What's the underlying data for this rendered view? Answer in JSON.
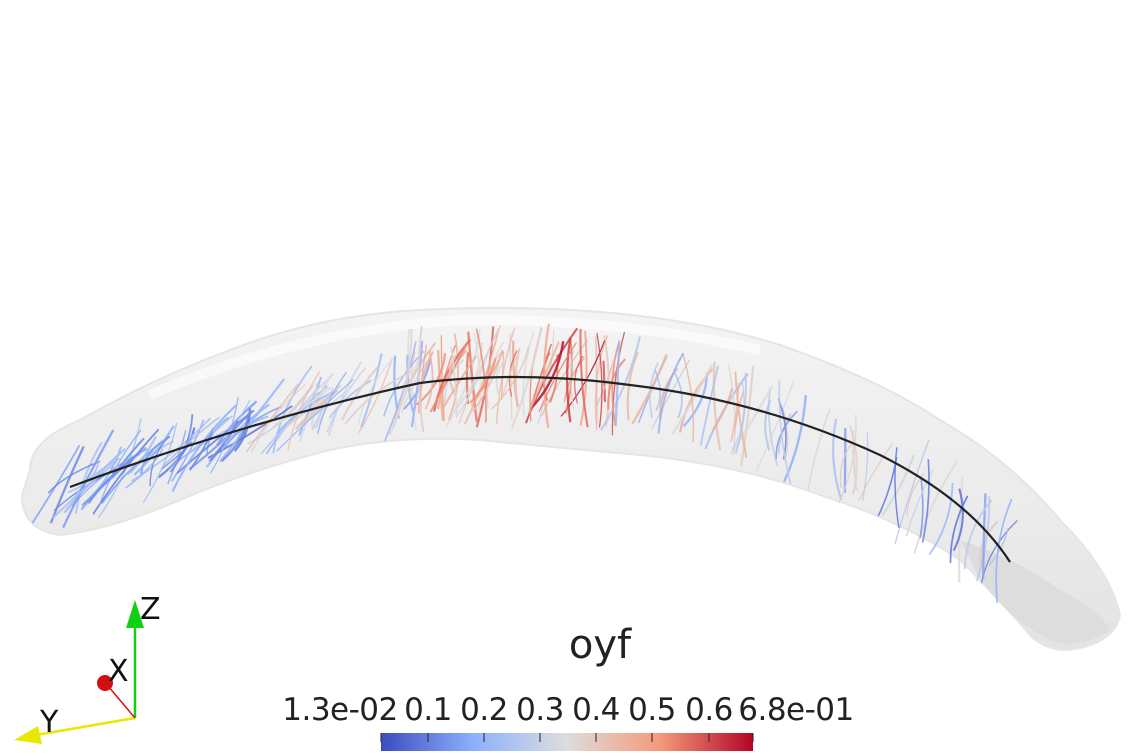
{
  "colorbar": {
    "title": "oyf",
    "tick_labels": [
      "1.3e-02",
      "0.1",
      "0.2",
      "0.3",
      "0.4",
      "0.5",
      "0.6",
      "6.8e-01"
    ],
    "range": [
      0.013,
      0.68
    ],
    "colors": {
      "low": "#3b4cc0",
      "mid": "#dddddd",
      "high": "#b40426"
    }
  },
  "orientation_axes": {
    "labels": {
      "x": "X",
      "y": "Y",
      "z": "Z"
    },
    "colors": {
      "x": "#e01010",
      "y": "#e8e800",
      "z": "#10d010"
    }
  }
}
